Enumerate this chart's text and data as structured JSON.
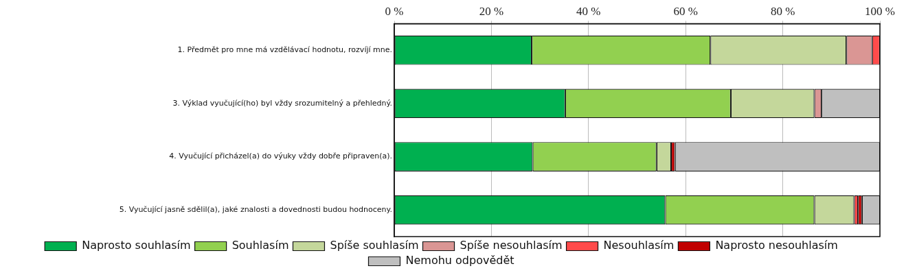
{
  "chart_data": {
    "type": "bar",
    "orientation": "horizontal",
    "stacked": true,
    "categories": [
      "1. Předmět pro mne má vzdělávací hodnotu, rozvíjí mne.",
      "3. Výklad vyučující(ho) byl vždy srozumitelný a přehledný.",
      "4. Vyučující přicházel(a) do výuky vždy dobře připraven(a).",
      "5. Vyučující jasně sdělil(a), jaké znalosti a dovednosti budou hodnoceny."
    ],
    "series": [
      {
        "name": "Naprosto souhlasím",
        "color": "#00b050",
        "values": [
          28.3,
          35.2,
          28.5,
          55.8
        ]
      },
      {
        "name": "Souhlasím",
        "color": "#92d050",
        "values": [
          36.8,
          34.1,
          25.5,
          30.7
        ]
      },
      {
        "name": "Spíše souhlasím",
        "color": "#c4d79b",
        "values": [
          28.0,
          17.2,
          3.0,
          8.2
        ]
      },
      {
        "name": "Spíše nesouhlasím",
        "color": "#da9694",
        "values": [
          5.3,
          1.5,
          0,
          0
        ]
      },
      {
        "name": "Nesouhlasím",
        "color": "#ff4b4b",
        "values": [
          1.6,
          0,
          0,
          0.8
        ]
      },
      {
        "name": "Naprosto nesouhlasím",
        "color": "#c00000",
        "values": [
          0,
          0,
          0.8,
          0.8
        ]
      },
      {
        "name": "Nemohu odpovědět",
        "color": "#bfbfbf",
        "values": [
          0,
          12.0,
          42.2,
          3.7
        ]
      }
    ],
    "xlim": [
      0,
      100
    ],
    "xticks": [
      {
        "value": 0,
        "label": "0 %"
      },
      {
        "value": 20,
        "label": "20 %"
      },
      {
        "value": 40,
        "label": "40 %"
      },
      {
        "value": 60,
        "label": "60 %"
      },
      {
        "value": 80,
        "label": "80 %"
      },
      {
        "value": 100,
        "label": "100 %"
      }
    ],
    "grid": "x",
    "legend": "bottom"
  }
}
